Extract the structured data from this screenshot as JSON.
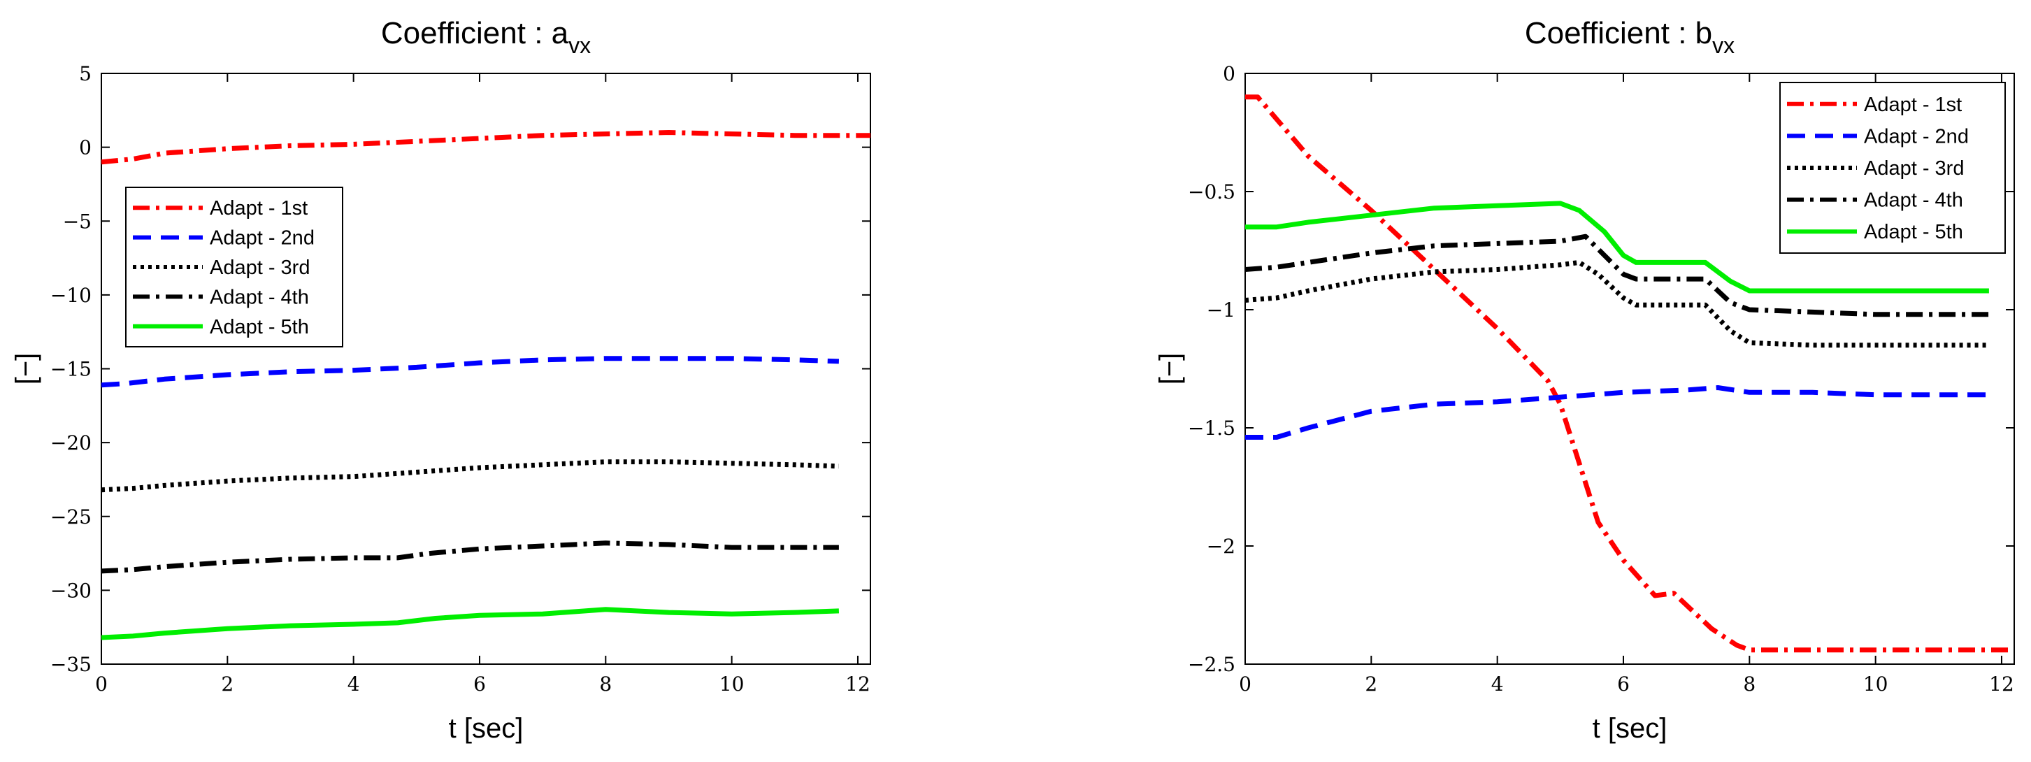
{
  "chart_data": [
    {
      "type": "line",
      "title": "Coefficient : a",
      "title_subscript": "vx",
      "xlabel": "t [sec]",
      "ylabel": "[−]",
      "xlim": [
        0,
        12.2
      ],
      "ylim": [
        -35,
        5
      ],
      "xticks": [
        "0",
        "2",
        "4",
        "6",
        "8",
        "10",
        "12"
      ],
      "yticks": [
        "5",
        "0",
        "−5",
        "−10",
        "−15",
        "−20",
        "−25",
        "−30",
        "−35"
      ],
      "legend_position": "upper-left",
      "grid": false,
      "series": [
        {
          "name": "Adapt - 1st",
          "color": "#ff0000",
          "dash": "dashdot",
          "x": [
            0,
            0.5,
            1,
            2,
            3,
            4,
            5,
            6,
            7,
            8,
            9,
            10,
            11,
            11.8,
            12.2
          ],
          "y": [
            -1.0,
            -0.8,
            -0.4,
            -0.1,
            0.1,
            0.2,
            0.4,
            0.6,
            0.8,
            0.9,
            1.0,
            0.9,
            0.8,
            0.8,
            0.8
          ]
        },
        {
          "name": "Adapt - 2nd",
          "color": "#0000ff",
          "dash": "dashed",
          "x": [
            0,
            0.4,
            1,
            2,
            3,
            4,
            5,
            6,
            7,
            8,
            9,
            10,
            11,
            11.7
          ],
          "y": [
            -16.1,
            -16.0,
            -15.7,
            -15.4,
            -15.2,
            -15.1,
            -14.9,
            -14.6,
            -14.4,
            -14.3,
            -14.3,
            -14.3,
            -14.4,
            -14.5
          ]
        },
        {
          "name": "Adapt - 3rd",
          "color": "#000000",
          "dash": "dotted",
          "x": [
            0,
            0.5,
            1,
            2,
            3,
            4,
            5,
            6,
            7,
            8,
            9,
            10,
            11,
            11.7
          ],
          "y": [
            -23.2,
            -23.1,
            -22.9,
            -22.6,
            -22.4,
            -22.3,
            -22.0,
            -21.7,
            -21.5,
            -21.3,
            -21.3,
            -21.4,
            -21.5,
            -21.6
          ]
        },
        {
          "name": "Adapt - 4th",
          "color": "#000000",
          "dash": "dashdot",
          "x": [
            0,
            0.5,
            1,
            2,
            3,
            4,
            4.7,
            5.2,
            6,
            7,
            8,
            9,
            10,
            11,
            11.7
          ],
          "y": [
            -28.7,
            -28.6,
            -28.4,
            -28.1,
            -27.9,
            -27.8,
            -27.8,
            -27.5,
            -27.2,
            -27.0,
            -26.8,
            -26.9,
            -27.1,
            -27.1,
            -27.1
          ]
        },
        {
          "name": "Adapt - 5th",
          "color": "#00ee00",
          "dash": "solid",
          "x": [
            0,
            0.5,
            1,
            2,
            3,
            4,
            4.7,
            5.3,
            6,
            7,
            8,
            9,
            10,
            11,
            11.7
          ],
          "y": [
            -33.2,
            -33.1,
            -32.9,
            -32.6,
            -32.4,
            -32.3,
            -32.2,
            -31.9,
            -31.7,
            -31.6,
            -31.3,
            -31.5,
            -31.6,
            -31.5,
            -31.4
          ]
        }
      ]
    },
    {
      "type": "line",
      "title": "Coefficient : b",
      "title_subscript": "vx",
      "xlabel": "t [sec]",
      "ylabel": "[−]",
      "xlim": [
        0,
        12.2
      ],
      "ylim": [
        -2.5,
        0
      ],
      "xticks": [
        "0",
        "2",
        "4",
        "6",
        "8",
        "10",
        "12"
      ],
      "yticks": [
        "0",
        "−0.5",
        "−1",
        "−1.5",
        "−2",
        "−2.5"
      ],
      "legend_position": "upper-right",
      "grid": false,
      "series": [
        {
          "name": "Adapt - 1st",
          "color": "#ff0000",
          "dash": "dashdot",
          "x": [
            0,
            0.2,
            1,
            2,
            3,
            4,
            4.8,
            5.0,
            5.3,
            5.6,
            6.0,
            6.5,
            6.8,
            7.0,
            7.4,
            7.8,
            8.0,
            9,
            10,
            11,
            12.2
          ],
          "y": [
            -0.1,
            -0.1,
            -0.35,
            -0.58,
            -0.83,
            -1.08,
            -1.3,
            -1.4,
            -1.65,
            -1.9,
            -2.06,
            -2.21,
            -2.2,
            -2.25,
            -2.35,
            -2.42,
            -2.44,
            -2.44,
            -2.44,
            -2.44,
            -2.44
          ]
        },
        {
          "name": "Adapt - 2nd",
          "color": "#0000ff",
          "dash": "dashed",
          "x": [
            0,
            0.5,
            1,
            2,
            3,
            4,
            5,
            6,
            7,
            7.5,
            8,
            9,
            10,
            11,
            11.8
          ],
          "y": [
            -1.54,
            -1.54,
            -1.5,
            -1.43,
            -1.4,
            -1.39,
            -1.37,
            -1.35,
            -1.34,
            -1.33,
            -1.35,
            -1.35,
            -1.36,
            -1.36,
            -1.36
          ]
        },
        {
          "name": "Adapt - 3rd",
          "color": "#000000",
          "dash": "dotted",
          "x": [
            0,
            0.5,
            1,
            2,
            3,
            4,
            5,
            5.3,
            5.6,
            6.0,
            6.2,
            7.0,
            7.3,
            7.7,
            8.0,
            9,
            10,
            11,
            11.8
          ],
          "y": [
            -0.96,
            -0.95,
            -0.92,
            -0.87,
            -0.84,
            -0.83,
            -0.81,
            -0.8,
            -0.85,
            -0.95,
            -0.98,
            -0.98,
            -0.98,
            -1.09,
            -1.14,
            -1.15,
            -1.15,
            -1.15,
            -1.15
          ]
        },
        {
          "name": "Adapt - 4th",
          "color": "#000000",
          "dash": "dashdot",
          "x": [
            0,
            0.5,
            1,
            2,
            3,
            4,
            5,
            5.4,
            5.7,
            6.0,
            6.2,
            7.0,
            7.3,
            7.7,
            8.0,
            9,
            10,
            11,
            11.8
          ],
          "y": [
            -0.83,
            -0.82,
            -0.8,
            -0.76,
            -0.73,
            -0.72,
            -0.71,
            -0.69,
            -0.77,
            -0.85,
            -0.87,
            -0.87,
            -0.87,
            -0.97,
            -1.0,
            -1.01,
            -1.02,
            -1.02,
            -1.02
          ]
        },
        {
          "name": "Adapt - 5th",
          "color": "#00ee00",
          "dash": "solid",
          "x": [
            0,
            0.5,
            1,
            2,
            3,
            4,
            5.0,
            5.3,
            5.7,
            6.0,
            6.2,
            7.0,
            7.3,
            7.7,
            8.0,
            9,
            10,
            11,
            11.8
          ],
          "y": [
            -0.65,
            -0.65,
            -0.63,
            -0.6,
            -0.57,
            -0.56,
            -0.55,
            -0.58,
            -0.67,
            -0.77,
            -0.8,
            -0.8,
            -0.8,
            -0.88,
            -0.92,
            -0.92,
            -0.92,
            -0.92,
            -0.92
          ]
        }
      ]
    }
  ]
}
